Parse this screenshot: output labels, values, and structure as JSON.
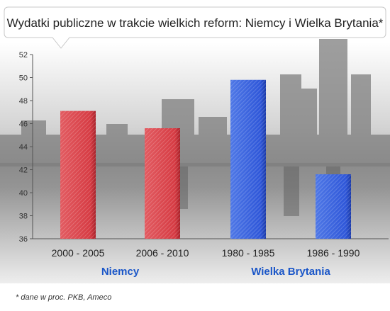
{
  "chart_data": {
    "type": "bar",
    "title": "Wydatki publiczne w trakcie wielkich reform: Niemcy i Wielka Brytania*",
    "categories": [
      "2000 - 2005",
      "2006 - 2010",
      "1980 - 1985",
      "1986 - 1990"
    ],
    "values": [
      47.1,
      45.6,
      49.8,
      41.6
    ],
    "bar_colors": [
      "#d63b43",
      "#d63b43",
      "#2f57d9",
      "#2f57d9"
    ],
    "groups": [
      {
        "label": "Niemcy",
        "categories": [
          "2000 - 2005",
          "2006 - 2010"
        ]
      },
      {
        "label": "Wielka Brytania",
        "categories": [
          "1980 - 1985",
          "1986 - 1990"
        ]
      }
    ],
    "y_ticks": [
      36,
      38,
      40,
      42,
      44,
      46,
      48,
      50,
      52
    ],
    "ylim": [
      36,
      52
    ],
    "grid": false,
    "footnote": "* dane w proc. PKB, Ameco"
  }
}
